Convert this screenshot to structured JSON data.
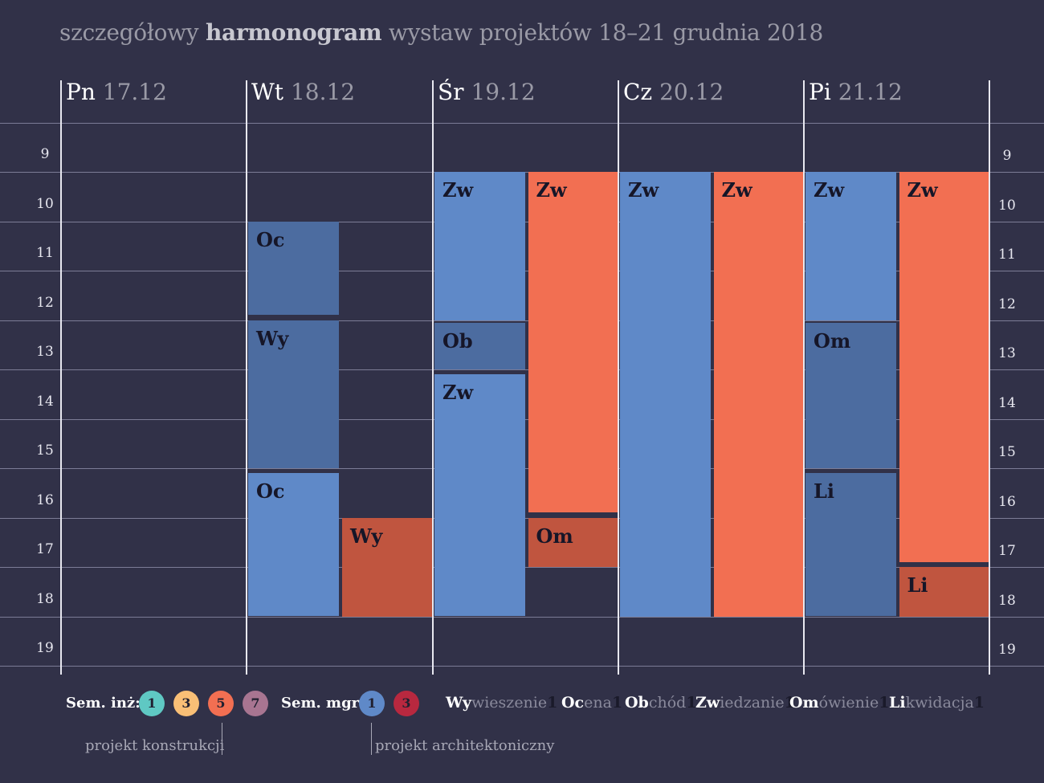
{
  "title": {
    "pre": "szczegółowy ",
    "bold": "harmonogram",
    "post": " wystaw projektów 18–21 grudnia 2018"
  },
  "hours": [
    "9",
    "10",
    "11",
    "12",
    "13",
    "14",
    "15",
    "16",
    "17",
    "18",
    "19"
  ],
  "days": [
    {
      "abbr": "Pn",
      "date": "17.12"
    },
    {
      "abbr": "Wt",
      "date": "18.12"
    },
    {
      "abbr": "Śr",
      "date": "19.12"
    },
    {
      "abbr": "Cz",
      "date": "20.12"
    },
    {
      "abbr": "Pi",
      "date": "21.12"
    }
  ],
  "colors": {
    "blue": "#5f89c8",
    "blue_dark": "#4c6ca0",
    "orange": "#f26f52",
    "orange_dark": "#c0553f",
    "teal": "#5fc8c3",
    "yellow": "#f9bf76",
    "mauve": "#a87591",
    "red": "#b8283f"
  },
  "events": [
    {
      "day": 1,
      "lane": 0,
      "start": 10.0,
      "end": 11.9,
      "code": "Oc",
      "color": "blue_dark"
    },
    {
      "day": 1,
      "lane": 0,
      "start": 12.0,
      "end": 15.0,
      "code": "Wy",
      "color": "blue_dark"
    },
    {
      "day": 1,
      "lane": 0,
      "start": 15.1,
      "end": 18.0,
      "code": "Oc",
      "color": "blue"
    },
    {
      "day": 1,
      "lane": 1,
      "start": 16.0,
      "end": 18.0,
      "code": "Wy",
      "color": "orange_dark"
    },
    {
      "day": 2,
      "lane": 0,
      "start": 9.0,
      "end": 12.0,
      "code": "Zw",
      "color": "blue"
    },
    {
      "day": 2,
      "lane": 0,
      "start": 12.05,
      "end": 13.0,
      "code": "Ob",
      "color": "blue_dark"
    },
    {
      "day": 2,
      "lane": 0,
      "start": 13.1,
      "end": 18.0,
      "code": "Zw",
      "color": "blue"
    },
    {
      "day": 2,
      "lane": 1,
      "start": 9.0,
      "end": 15.9,
      "code": "Zw",
      "color": "orange"
    },
    {
      "day": 2,
      "lane": 1,
      "start": 16.0,
      "end": 17.0,
      "code": "Om",
      "color": "orange_dark"
    },
    {
      "day": 3,
      "lane": 0,
      "start": 9.0,
      "end": 18.0,
      "code": "Zw",
      "color": "blue"
    },
    {
      "day": 3,
      "lane": 1,
      "start": 9.0,
      "end": 18.0,
      "code": "Zw",
      "color": "orange"
    },
    {
      "day": 4,
      "lane": 0,
      "start": 9.0,
      "end": 12.0,
      "code": "Zw",
      "color": "blue"
    },
    {
      "day": 4,
      "lane": 0,
      "start": 12.05,
      "end": 15.0,
      "code": "Om",
      "color": "blue_dark"
    },
    {
      "day": 4,
      "lane": 0,
      "start": 15.1,
      "end": 18.0,
      "code": "Li",
      "color": "blue_dark"
    },
    {
      "day": 4,
      "lane": 1,
      "start": 9.0,
      "end": 16.9,
      "code": "Zw",
      "color": "orange"
    },
    {
      "day": 4,
      "lane": 1,
      "start": 17.0,
      "end": 18.0,
      "code": "Li",
      "color": "orange_dark"
    }
  ],
  "legend": {
    "inz_label": "Sem. inż:",
    "inz": [
      {
        "num": "1",
        "color": "teal"
      },
      {
        "num": "3",
        "color": "yellow"
      },
      {
        "num": "5",
        "color": "orange"
      },
      {
        "num": "7",
        "color": "mauve"
      }
    ],
    "mgr_label": "Sem. mgr:",
    "mgr": [
      {
        "num": "1",
        "color": "blue"
      },
      {
        "num": "3",
        "color": "red"
      }
    ],
    "activities": [
      {
        "bold": "Wy",
        "rest": "wieszenie",
        "sub": "1"
      },
      {
        "bold": "Oc",
        "rest": "ena",
        "sub": "1"
      },
      {
        "bold": "Ob",
        "rest": "chód",
        "sub": "1"
      },
      {
        "bold": "Zw",
        "rest": "iedzanie",
        "sub": "1"
      },
      {
        "bold": "Om",
        "rest": "ówienie",
        "sub": "1"
      },
      {
        "bold": "Li",
        "rest": "kwidacja",
        "sub": "1"
      }
    ],
    "note_konstrukcji": "projekt konstrukcji",
    "note_architektoniczny": "projekt architektoniczny"
  }
}
